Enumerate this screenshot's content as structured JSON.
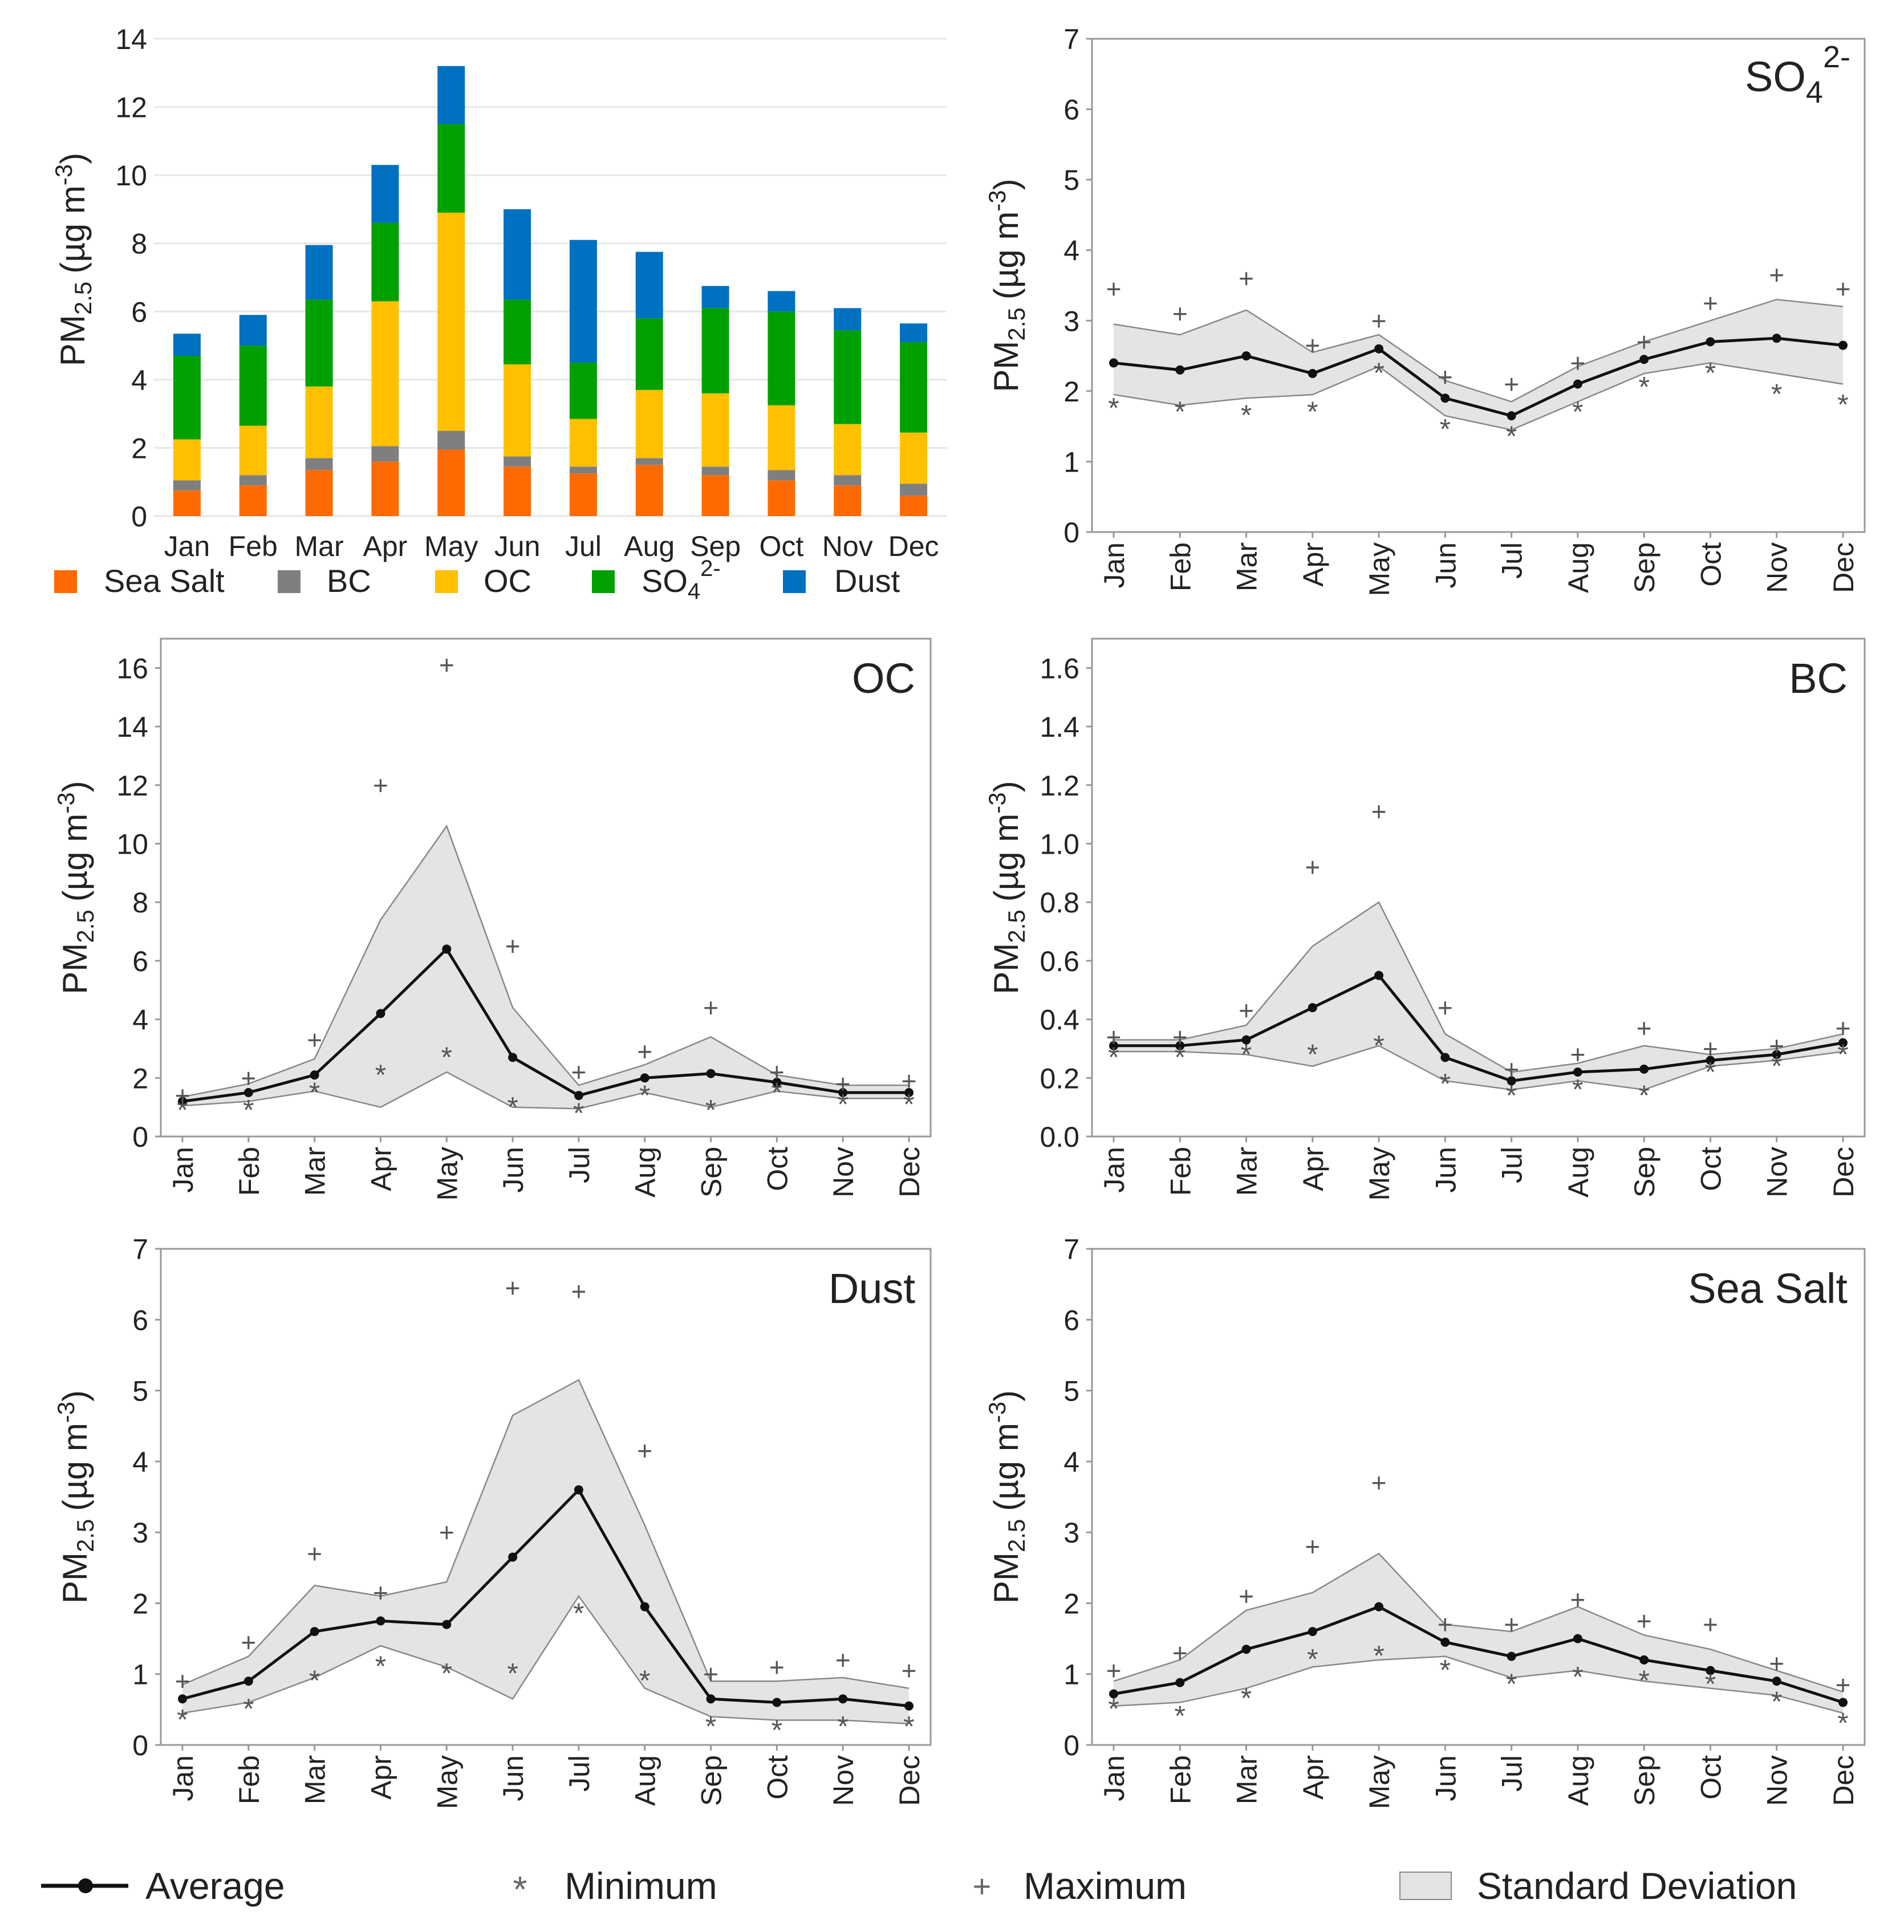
{
  "chart_data": [
    {
      "id": "stacked",
      "type": "bar",
      "stacked": true,
      "title": "",
      "ylabel": "PM2.5 (µg m-3)",
      "ylim": [
        0,
        14
      ],
      "yticks": [
        0,
        2,
        4,
        6,
        8,
        10,
        12,
        14
      ],
      "grid": true,
      "categories": [
        "Jan",
        "Feb",
        "Mar",
        "Apr",
        "May",
        "Jun",
        "Jul",
        "Aug",
        "Sep",
        "Oct",
        "Nov",
        "Dec"
      ],
      "series": [
        {
          "name": "Sea Salt",
          "color": "#FF6A00",
          "values": [
            0.75,
            0.9,
            1.35,
            1.6,
            1.95,
            1.45,
            1.25,
            1.5,
            1.2,
            1.05,
            0.9,
            0.6
          ]
        },
        {
          "name": "BC",
          "color": "#7F7F7F",
          "values": [
            0.3,
            0.3,
            0.35,
            0.45,
            0.55,
            0.3,
            0.2,
            0.2,
            0.25,
            0.3,
            0.3,
            0.35
          ]
        },
        {
          "name": "OC",
          "color": "#FFC000",
          "values": [
            1.2,
            1.45,
            2.1,
            4.25,
            6.4,
            2.7,
            1.4,
            2.0,
            2.15,
            1.9,
            1.5,
            1.5
          ]
        },
        {
          "name": "SO42-",
          "color": "#00A000",
          "values": [
            2.45,
            2.35,
            2.55,
            2.3,
            2.6,
            1.9,
            1.65,
            2.1,
            2.5,
            2.75,
            2.75,
            2.65
          ]
        },
        {
          "name": "Dust",
          "color": "#0070C0",
          "values": [
            0.65,
            0.9,
            1.6,
            1.7,
            1.7,
            2.65,
            3.6,
            1.95,
            0.65,
            0.6,
            0.65,
            0.55
          ]
        }
      ],
      "legend": [
        "Sea Salt",
        "BC",
        "OC",
        "SO42-",
        "Dust"
      ]
    },
    {
      "id": "so4",
      "type": "line",
      "title": "SO42-",
      "ylabel": "PM2.5 (µg m-3)",
      "ylim": [
        0,
        7
      ],
      "yticks": [
        0,
        1,
        2,
        3,
        4,
        5,
        6,
        7
      ],
      "ytick_labels": [
        "0",
        "1",
        "2",
        "3",
        "4",
        "5",
        "6",
        "7"
      ],
      "categories": [
        "Jan",
        "Feb",
        "Mar",
        "Apr",
        "May",
        "Jun",
        "Jul",
        "Aug",
        "Sep",
        "Oct",
        "Nov",
        "Dec"
      ],
      "average": [
        2.4,
        2.3,
        2.5,
        2.25,
        2.6,
        1.9,
        1.65,
        2.1,
        2.45,
        2.7,
        2.75,
        2.65
      ],
      "sd_upper": [
        2.95,
        2.8,
        3.15,
        2.55,
        2.8,
        2.15,
        1.85,
        2.35,
        2.7,
        3.0,
        3.3,
        3.2
      ],
      "sd_lower": [
        1.95,
        1.8,
        1.9,
        1.95,
        2.35,
        1.65,
        1.45,
        1.85,
        2.25,
        2.4,
        2.25,
        2.1
      ],
      "maximum": [
        3.45,
        3.1,
        3.6,
        2.65,
        3.0,
        2.2,
        2.1,
        2.4,
        2.7,
        3.25,
        3.65,
        3.45
      ],
      "minimum": [
        1.8,
        1.75,
        1.7,
        1.75,
        2.3,
        1.5,
        1.4,
        1.75,
        2.1,
        2.3,
        2.0,
        1.85
      ]
    },
    {
      "id": "oc",
      "type": "line",
      "title": "OC",
      "ylabel": "PM2.5 (µg m-3)",
      "ylim": [
        0,
        17
      ],
      "yticks": [
        0,
        2,
        4,
        6,
        8,
        10,
        12,
        14,
        16
      ],
      "ytick_labels": [
        "0",
        "2",
        "4",
        "6",
        "8",
        "10",
        "12",
        "14",
        "16"
      ],
      "categories": [
        "Jan",
        "Feb",
        "Mar",
        "Apr",
        "May",
        "Jun",
        "Jul",
        "Aug",
        "Sep",
        "Oct",
        "Nov",
        "Dec"
      ],
      "average": [
        1.2,
        1.5,
        2.1,
        4.2,
        6.4,
        2.7,
        1.4,
        2.0,
        2.15,
        1.85,
        1.5,
        1.5
      ],
      "sd_upper": [
        1.35,
        1.8,
        2.65,
        7.4,
        10.6,
        4.4,
        1.75,
        2.45,
        3.4,
        2.1,
        1.75,
        1.75
      ],
      "sd_lower": [
        1.05,
        1.2,
        1.55,
        1.0,
        2.2,
        1.0,
        0.95,
        1.5,
        1.0,
        1.55,
        1.3,
        1.3
      ],
      "maximum": [
        1.4,
        2.0,
        3.3,
        12.0,
        16.1,
        6.5,
        2.2,
        2.9,
        4.4,
        2.2,
        1.8,
        1.9
      ],
      "minimum": [
        1.0,
        1.0,
        1.6,
        2.2,
        2.8,
        1.1,
        0.9,
        1.5,
        1.0,
        1.6,
        1.2,
        1.2
      ]
    },
    {
      "id": "bc",
      "type": "line",
      "title": "BC",
      "ylabel": "PM2.5 (µg m-3)",
      "ylim": [
        0,
        1.7
      ],
      "yticks": [
        0,
        0.2,
        0.4,
        0.6,
        0.8,
        1.0,
        1.2,
        1.4,
        1.6
      ],
      "ytick_labels": [
        "0.0",
        "0.2",
        "0.4",
        "0.6",
        "0.8",
        "1.0",
        "1.2",
        "1.4",
        "1.6"
      ],
      "categories": [
        "Jan",
        "Feb",
        "Mar",
        "Apr",
        "May",
        "Jun",
        "Jul",
        "Aug",
        "Sep",
        "Oct",
        "Nov",
        "Dec"
      ],
      "average": [
        0.31,
        0.31,
        0.33,
        0.44,
        0.55,
        0.27,
        0.19,
        0.22,
        0.23,
        0.26,
        0.28,
        0.32
      ],
      "sd_upper": [
        0.33,
        0.33,
        0.38,
        0.65,
        0.8,
        0.35,
        0.22,
        0.25,
        0.31,
        0.28,
        0.3,
        0.35
      ],
      "sd_lower": [
        0.29,
        0.29,
        0.28,
        0.24,
        0.31,
        0.19,
        0.16,
        0.19,
        0.16,
        0.24,
        0.26,
        0.29
      ],
      "maximum": [
        0.34,
        0.34,
        0.43,
        0.92,
        1.11,
        0.44,
        0.23,
        0.28,
        0.37,
        0.3,
        0.31,
        0.37
      ],
      "minimum": [
        0.28,
        0.28,
        0.29,
        0.29,
        0.32,
        0.19,
        0.15,
        0.17,
        0.15,
        0.23,
        0.25,
        0.29
      ]
    },
    {
      "id": "dust",
      "type": "line",
      "title": "Dust",
      "ylabel": "PM2.5 (µg m-3)",
      "ylim": [
        0,
        7
      ],
      "yticks": [
        0,
        1,
        2,
        3,
        4,
        5,
        6,
        7
      ],
      "ytick_labels": [
        "0",
        "1",
        "2",
        "3",
        "4",
        "5",
        "6",
        "7"
      ],
      "categories": [
        "Jan",
        "Feb",
        "Mar",
        "Apr",
        "May",
        "Jun",
        "Jul",
        "Aug",
        "Sep",
        "Oct",
        "Nov",
        "Dec"
      ],
      "average": [
        0.65,
        0.9,
        1.6,
        1.75,
        1.7,
        2.65,
        3.6,
        1.95,
        0.65,
        0.6,
        0.65,
        0.55
      ],
      "sd_upper": [
        0.85,
        1.25,
        2.25,
        2.1,
        2.3,
        4.65,
        5.15,
        3.1,
        0.9,
        0.9,
        0.95,
        0.8
      ],
      "sd_lower": [
        0.45,
        0.6,
        0.95,
        1.4,
        1.1,
        0.65,
        2.1,
        0.8,
        0.4,
        0.35,
        0.35,
        0.3
      ],
      "maximum": [
        0.9,
        1.45,
        2.7,
        2.15,
        3.0,
        6.45,
        6.4,
        4.15,
        1.0,
        1.1,
        1.2,
        1.05
      ],
      "minimum": [
        0.4,
        0.55,
        0.95,
        1.15,
        1.05,
        1.05,
        1.9,
        0.95,
        0.3,
        0.25,
        0.3,
        0.3
      ]
    },
    {
      "id": "seasalt",
      "type": "line",
      "title": "Sea Salt",
      "ylabel": "PM2.5 (µg m-3)",
      "ylim": [
        0,
        7
      ],
      "yticks": [
        0,
        1,
        2,
        3,
        4,
        5,
        6,
        7
      ],
      "ytick_labels": [
        "0",
        "1",
        "2",
        "3",
        "4",
        "5",
        "6",
        "7"
      ],
      "categories": [
        "Jan",
        "Feb",
        "Mar",
        "Apr",
        "May",
        "Jun",
        "Jul",
        "Aug",
        "Sep",
        "Oct",
        "Nov",
        "Dec"
      ],
      "average": [
        0.72,
        0.88,
        1.35,
        1.6,
        1.95,
        1.45,
        1.25,
        1.5,
        1.2,
        1.05,
        0.9,
        0.6
      ],
      "sd_upper": [
        0.9,
        1.2,
        1.9,
        2.15,
        2.7,
        1.7,
        1.6,
        1.95,
        1.55,
        1.35,
        1.05,
        0.75
      ],
      "sd_lower": [
        0.55,
        0.6,
        0.8,
        1.1,
        1.2,
        1.25,
        0.95,
        1.05,
        0.9,
        0.8,
        0.7,
        0.45
      ],
      "maximum": [
        1.05,
        1.3,
        2.1,
        2.8,
        3.7,
        1.7,
        1.7,
        2.05,
        1.75,
        1.7,
        1.15,
        0.85
      ],
      "minimum": [
        0.55,
        0.45,
        0.7,
        1.25,
        1.3,
        1.1,
        0.9,
        1.0,
        0.95,
        0.9,
        0.65,
        0.35
      ]
    }
  ],
  "text": {
    "ylabel_pm": "PM",
    "ylabel_sub": "2.5",
    "ylabel_unit": "(µg m",
    "ylabel_sup": "-3",
    "ylabel_close": ")",
    "so4_title_main": "SO",
    "so4_title_sub": "4",
    "so4_title_sup": "2-",
    "oc_title": "OC",
    "bc_title": "BC",
    "dust_title": "Dust",
    "seasalt_title": "Sea Salt",
    "legend_seasalt": "Sea Salt",
    "legend_bc": "BC",
    "legend_oc": "OC",
    "legend_so4_main": "SO",
    "legend_so4_sub": "4",
    "legend_so4_sup": "2-",
    "legend_dust": "Dust",
    "legend_average": "Average",
    "legend_minimum": "Minimum",
    "legend_maximum": "Maximum",
    "legend_sd": "Standard Deviation",
    "symbol_max": "+",
    "symbol_min": "*"
  },
  "colors": {
    "sd_fill": "#E4E4E4",
    "sd_edge": "#888888",
    "average": "#111111",
    "marker": "#555555",
    "frame": "#999999",
    "grid": "#E6E6E6"
  }
}
